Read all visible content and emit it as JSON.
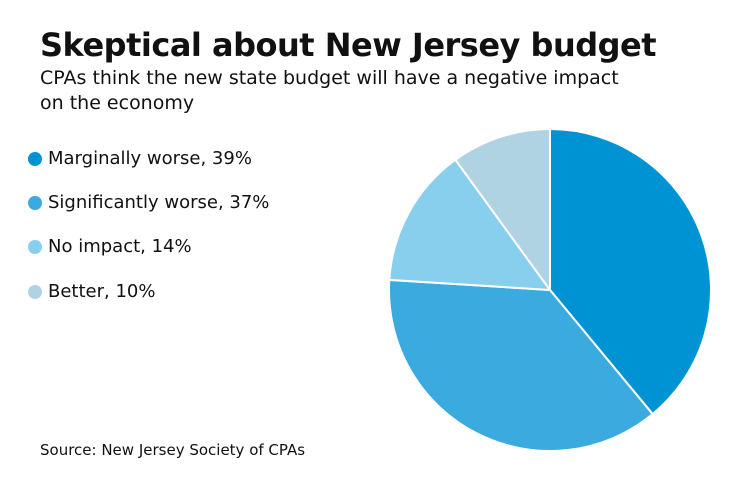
{
  "chart_data": {
    "type": "pie",
    "title": "Skeptical about New Jersey budget",
    "subtitle": "CPAs think the new state budget will have a negative impact on the economy",
    "slices": [
      {
        "label": "Marginally worse, 39%",
        "value": 39,
        "color": "#0093d3"
      },
      {
        "label": "Significantly worse, 37%",
        "value": 37,
        "color": "#3aaadf"
      },
      {
        "label": "No impact, 14%",
        "value": 14,
        "color": "#88cfee"
      },
      {
        "label": "Better, 10%",
        "value": 10,
        "color": "#b0d3e4"
      }
    ],
    "legend": "left",
    "source": "Source: New Jersey Society of CPAs"
  }
}
